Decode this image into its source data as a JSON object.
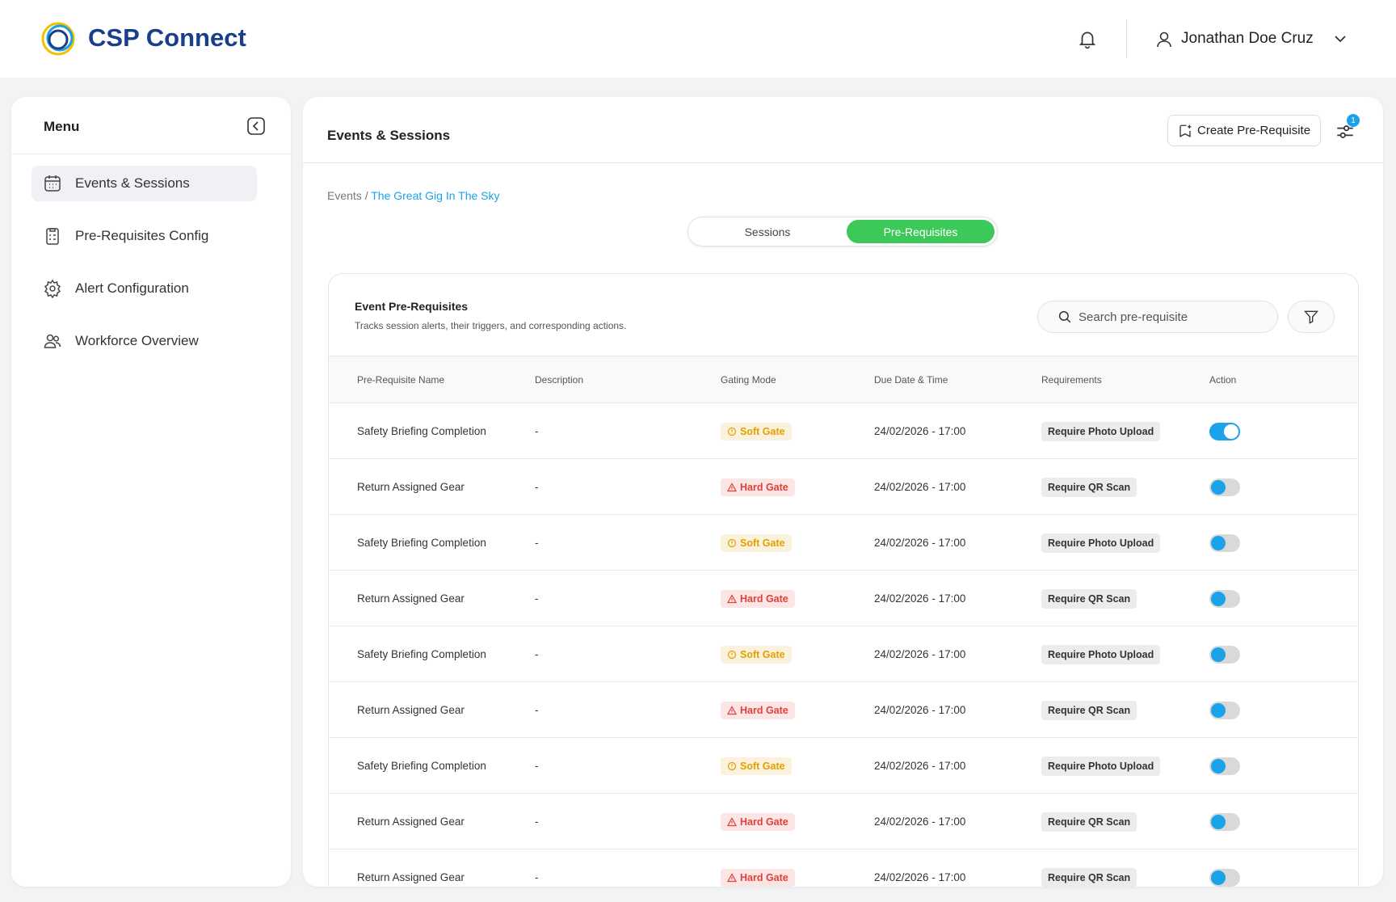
{
  "header": {
    "brand": "CSP Connect",
    "user": "Jonathan Doe Cruz"
  },
  "sidebar": {
    "title": "Menu",
    "items": [
      "Events & Sessions",
      "Pre-Requisites Config",
      "Alert Configuration",
      "Workforce Overview"
    ]
  },
  "main": {
    "title": "Events & Sessions",
    "create_button": "Create Pre-Requisite",
    "filter_badge": "1",
    "breadcrumb": {
      "parent": "Events /",
      "current": "The Great Gig In The Sky"
    },
    "tabs": [
      "Sessions",
      "Pre-Requisites"
    ],
    "card": {
      "title": "Event Pre-Requisites",
      "subtitle": "Tracks session alerts, their triggers, and corresponding actions.",
      "search_placeholder": "Search pre-requisite"
    },
    "table": {
      "columns": [
        "Pre-Requisite Name",
        "Description",
        "Gating Mode",
        "Due Date & Time",
        "Requirements",
        "Action"
      ],
      "rows": [
        {
          "name": "Safety Briefing Completion",
          "description": "-",
          "gating_mode": "Soft Gate",
          "gate_color": "#e0a100",
          "gate_icon": "circle",
          "due": "24/02/2026 - 17:00",
          "requirement": "Require Photo Upload",
          "enabled": true
        },
        {
          "name": "Return Assigned Gear",
          "description": "-",
          "gating_mode": "Hard Gate",
          "gate_color": "#e0403a",
          "gate_icon": "triangle",
          "due": "24/02/2026 - 17:00",
          "requirement": "Require QR Scan",
          "enabled": false
        },
        {
          "name": "Safety Briefing Completion",
          "description": "-",
          "gating_mode": "Soft Gate",
          "gate_color": "#e0a100",
          "gate_icon": "circle",
          "due": "24/02/2026 - 17:00",
          "requirement": "Require Photo Upload",
          "enabled": false
        },
        {
          "name": "Return Assigned Gear",
          "description": "-",
          "gating_mode": "Hard Gate",
          "gate_color": "#e0403a",
          "gate_icon": "triangle",
          "due": "24/02/2026 - 17:00",
          "requirement": "Require QR Scan",
          "enabled": false
        },
        {
          "name": "Safety Briefing Completion",
          "description": "-",
          "gating_mode": "Soft Gate",
          "gate_color": "#e0a100",
          "gate_icon": "circle",
          "due": "24/02/2026 - 17:00",
          "requirement": "Require Photo Upload",
          "enabled": false
        },
        {
          "name": "Return Assigned Gear",
          "description": "-",
          "gating_mode": "Hard Gate",
          "gate_color": "#e0403a",
          "gate_icon": "triangle",
          "due": "24/02/2026 - 17:00",
          "requirement": "Require QR Scan",
          "enabled": false
        },
        {
          "name": "Safety Briefing Completion",
          "description": "-",
          "gating_mode": "Soft Gate",
          "gate_color": "#e0a100",
          "gate_icon": "circle",
          "due": "24/02/2026 - 17:00",
          "requirement": "Require Photo Upload",
          "enabled": false
        },
        {
          "name": "Return Assigned Gear",
          "description": "-",
          "gating_mode": "Hard Gate",
          "gate_color": "#e0403a",
          "gate_icon": "triangle",
          "due": "24/02/2026 - 17:00",
          "requirement": "Require QR Scan",
          "enabled": false
        },
        {
          "name": "Return Assigned Gear",
          "description": "-",
          "gating_mode": "Hard Gate",
          "gate_color": "#e0403a",
          "gate_icon": "triangle",
          "due": "24/02/2026 - 17:00",
          "requirement": "Require QR Scan",
          "enabled": false
        }
      ]
    }
  }
}
